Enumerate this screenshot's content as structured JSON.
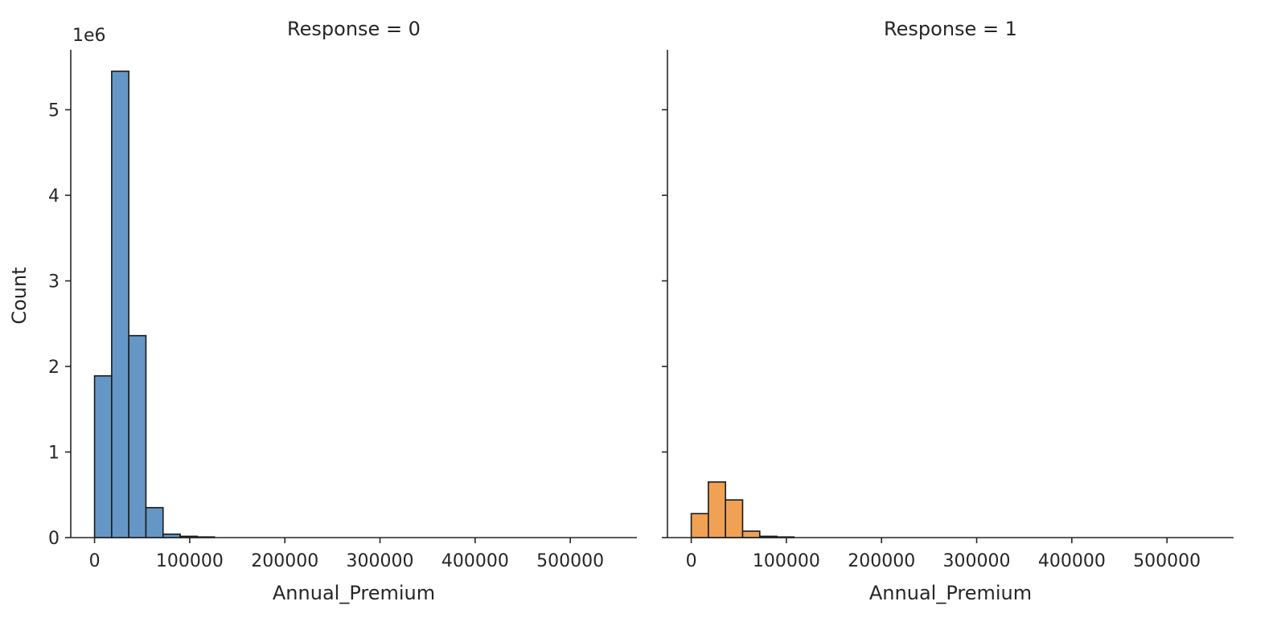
{
  "chart_data": {
    "type": "bar",
    "subtype": "histogram-facet-grid",
    "ylabel": "Count",
    "y_offset_text": "1e6",
    "ylim": [
      0,
      5700000
    ],
    "yticks": [
      0,
      1000000,
      2000000,
      3000000,
      4000000,
      5000000
    ],
    "ytick_labels": [
      "0",
      "1",
      "2",
      "3",
      "4",
      "5"
    ],
    "xlim": [
      -25000,
      570000
    ],
    "xticks": [
      0,
      100000,
      200000,
      300000,
      400000,
      500000
    ],
    "xtick_labels": [
      "0",
      "100000",
      "200000",
      "300000",
      "400000",
      "500000"
    ],
    "bin_width": 18000,
    "grid": false,
    "legend": "none",
    "panels": [
      {
        "title": "Response = 0",
        "xlabel": "Annual_Premium",
        "color": "#6497c6",
        "edge_color": "#1a1a1a",
        "bins": [
          {
            "x0": 0,
            "x1": 18000,
            "count": 1890000
          },
          {
            "x0": 18000,
            "x1": 36000,
            "count": 5450000
          },
          {
            "x0": 36000,
            "x1": 54000,
            "count": 2360000
          },
          {
            "x0": 54000,
            "x1": 72000,
            "count": 350000
          },
          {
            "x0": 72000,
            "x1": 90000,
            "count": 40000
          },
          {
            "x0": 90000,
            "x1": 108000,
            "count": 15000
          },
          {
            "x0": 108000,
            "x1": 126000,
            "count": 5000
          }
        ]
      },
      {
        "title": "Response = 1",
        "xlabel": "Annual_Premium",
        "color": "#f0a154",
        "edge_color": "#1a1a1a",
        "bins": [
          {
            "x0": 0,
            "x1": 18000,
            "count": 280000
          },
          {
            "x0": 18000,
            "x1": 36000,
            "count": 650000
          },
          {
            "x0": 36000,
            "x1": 54000,
            "count": 440000
          },
          {
            "x0": 54000,
            "x1": 72000,
            "count": 75000
          },
          {
            "x0": 72000,
            "x1": 90000,
            "count": 15000
          },
          {
            "x0": 90000,
            "x1": 108000,
            "count": 4000
          }
        ]
      }
    ]
  }
}
